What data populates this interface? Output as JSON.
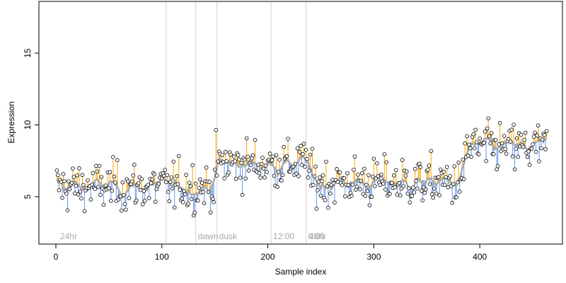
{
  "chart_data": {
    "type": "scatter",
    "title": "",
    "xlabel": "Sample index",
    "ylabel": "Expression",
    "xlim": [
      -16,
      478
    ],
    "ylim": [
      1.7,
      18.6
    ],
    "xticks": [
      0,
      100,
      200,
      300,
      400
    ],
    "yticks": [
      5,
      10,
      15
    ],
    "grid": false,
    "legend": "none",
    "markers": [
      {
        "x": 104,
        "label": ""
      },
      {
        "x": 132,
        "label": "dawn"
      },
      {
        "x": 152,
        "label": "dusk"
      },
      {
        "x": 203,
        "label": "12:00"
      },
      {
        "x": 236,
        "label": "0:00"
      },
      {
        "x": 2,
        "label": "24hr"
      },
      {
        "x": 237,
        "label": "48hr"
      }
    ],
    "segments": [
      {
        "x": [
          1,
          150
        ],
        "mean": 5.7
      },
      {
        "x": [
          151,
          240
        ],
        "mean": 7.3
      },
      {
        "x": [
          241,
          385
        ],
        "mean": 6.0
      },
      {
        "x": [
          386,
          463
        ],
        "mean": 8.4
      }
    ],
    "n_points": 463,
    "colors": {
      "above": "#FFA500",
      "below": "#6495ED",
      "trend": "#A9A9A9",
      "point_fill": "#FFFFFF",
      "point_edge": "#000000",
      "marker_line": "#D3D3D3",
      "marker_label": "#A9A9A9"
    }
  }
}
